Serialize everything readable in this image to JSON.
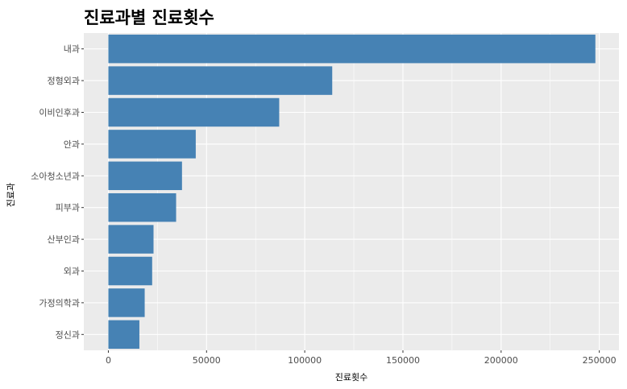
{
  "chart_data": {
    "type": "bar",
    "orientation": "horizontal",
    "title": "진료과별 진료횟수",
    "xlabel": "진료횟수",
    "ylabel": "진료과",
    "categories": [
      "내과",
      "정형외과",
      "이비인후과",
      "안과",
      "소아청소년과",
      "피부과",
      "산부인과",
      "외과",
      "가정의학과",
      "정신과"
    ],
    "values": [
      248000,
      114000,
      87000,
      44500,
      37500,
      34500,
      23000,
      22300,
      18500,
      15800
    ],
    "xlim": [
      -12500,
      260000
    ],
    "xticks": [
      0,
      50000,
      100000,
      150000,
      200000,
      250000
    ],
    "xtick_labels": [
      "0",
      "50000",
      "100000",
      "150000",
      "200000",
      "250000"
    ],
    "grid": true,
    "colors": {
      "bar": "#4682B4",
      "panel": "#EBEBEB",
      "grid": "#FFFFFF"
    }
  }
}
